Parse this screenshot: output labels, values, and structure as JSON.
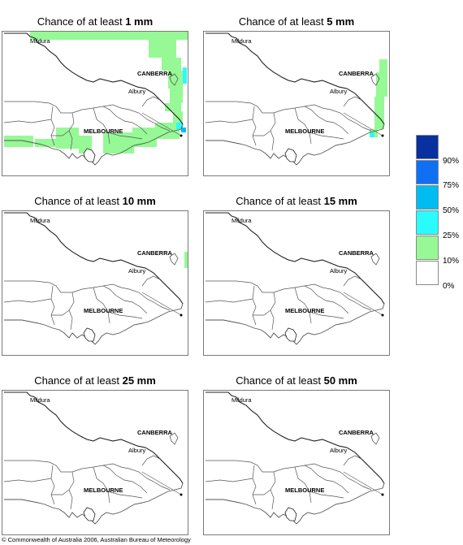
{
  "panels": [
    {
      "prefix": "Chance of at least ",
      "amount": "1 mm",
      "coverage": "high"
    },
    {
      "prefix": "Chance of at least ",
      "amount": "5 mm",
      "coverage": "low"
    },
    {
      "prefix": "Chance of at least ",
      "amount": "10 mm",
      "coverage": "trace"
    },
    {
      "prefix": "Chance of at least ",
      "amount": "15 mm",
      "coverage": "none"
    },
    {
      "prefix": "Chance of at least ",
      "amount": "25 mm",
      "coverage": "none"
    },
    {
      "prefix": "Chance of at least ",
      "amount": "50 mm",
      "coverage": "none"
    }
  ],
  "places": {
    "mildura": "Mildura",
    "canberra": "CANBERRA",
    "albury": "Albury",
    "melbourne": "MELBOURNE"
  },
  "legend": [
    {
      "label": "90%",
      "color": "#08309e"
    },
    {
      "label": "75%",
      "color": "#0f6ff5"
    },
    {
      "label": "50%",
      "color": "#00bcf0"
    },
    {
      "label": "25%",
      "color": "#2afbff"
    },
    {
      "label": "10%",
      "color": "#96f996"
    },
    {
      "label": "0%",
      "color": "#ffffff"
    }
  ],
  "colors": {
    "border": "#555555",
    "coast": "#222222"
  },
  "copyright": "© Commonwealth of Australia 2006, Australian Bureau of Meteorology"
}
